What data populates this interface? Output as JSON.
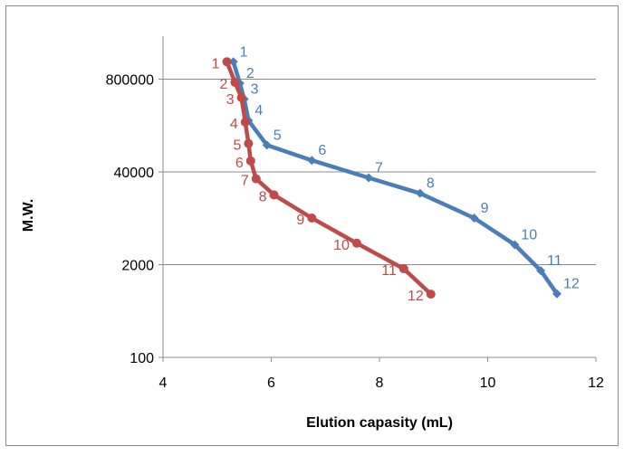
{
  "chart_data": {
    "type": "line",
    "title": "",
    "xlabel": "Elution capasity (mL)",
    "ylabel": "M.W.",
    "xlim": [
      4,
      12
    ],
    "y_scale": "log",
    "ylim": [
      100,
      3200000
    ],
    "x_ticks": [
      4,
      6,
      8,
      10,
      12
    ],
    "x_tick_labels": [
      "4",
      "6",
      "8",
      "10",
      "12"
    ],
    "y_ticks": [
      100,
      2000,
      40000,
      800000
    ],
    "y_tick_labels": [
      "100",
      "2000",
      "40000",
      "800000"
    ],
    "grid": "horizontal",
    "legend": "none",
    "series": [
      {
        "color": "#4a7ebb",
        "marker": "diamond",
        "labels": [
          "1",
          "2",
          "3",
          "4",
          "5",
          "6",
          "7",
          "8",
          "9",
          "10",
          "11",
          "12"
        ],
        "x": [
          5.3,
          5.42,
          5.5,
          5.58,
          5.92,
          6.75,
          7.8,
          8.75,
          9.75,
          10.5,
          10.98,
          11.28
        ],
        "y": [
          1400000,
          700000,
          420000,
          210000,
          95000,
          58000,
          33000,
          20000,
          9000,
          3800,
          1650,
          780
        ]
      },
      {
        "color": "#be4b48",
        "marker": "circle",
        "labels": [
          "1",
          "2",
          "3",
          "4",
          "5",
          "6",
          "7",
          "8",
          "9",
          "10",
          "11",
          "12"
        ],
        "x": [
          5.18,
          5.33,
          5.45,
          5.52,
          5.58,
          5.62,
          5.72,
          6.05,
          6.75,
          7.58,
          8.45,
          8.95
        ],
        "y": [
          1400000,
          720000,
          440000,
          200000,
          100000,
          57000,
          32000,
          19000,
          9000,
          4000,
          1750,
          770
        ]
      }
    ]
  }
}
